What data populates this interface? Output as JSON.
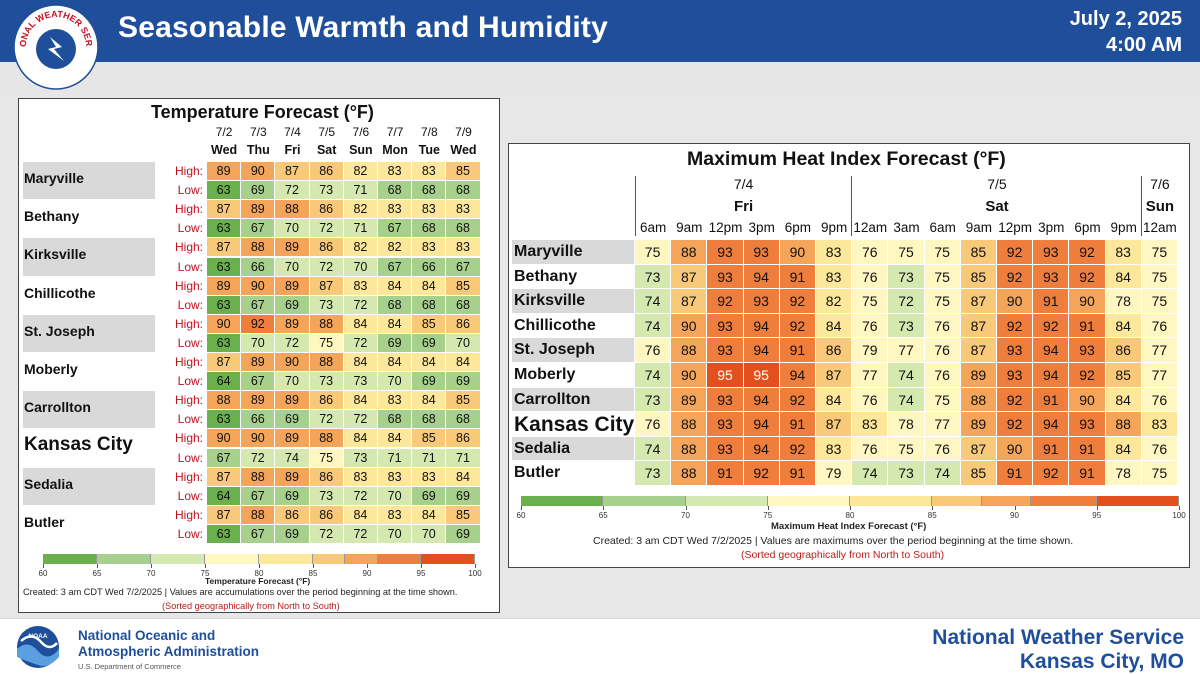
{
  "header": {
    "logo_text": "NATIONAL WEATHER SERVICE",
    "title": "Seasonable Warmth and Humidity",
    "date": "July 2, 2025",
    "time": "4:00 AM"
  },
  "footer": {
    "noaa_line1": "National Oceanic and",
    "noaa_line2": "Atmospheric Administration",
    "noaa_dept": "U.S. Department of Commerce",
    "noaa_logo_text": "NOAA",
    "nws_line1": "National Weather Service",
    "nws_line2": "Kansas City, MO"
  },
  "colors": {
    "header_blue": "#1f4f9a",
    "high_label_red": "#c1121f",
    "scale": [
      "#6ab04c",
      "#a8d08d",
      "#d5e8b0",
      "#fff7c2",
      "#fde79a",
      "#f9c97a",
      "#f5a55a",
      "#ef7d3c",
      "#e3501e"
    ]
  },
  "chart_data": [
    {
      "type": "table",
      "title": "Temperature Forecast (°F)",
      "dates": [
        "7/2",
        "7/3",
        "7/4",
        "7/5",
        "7/6",
        "7/7",
        "7/8",
        "7/9"
      ],
      "days": [
        "Wed",
        "Thu",
        "Fri",
        "Sat",
        "Sun",
        "Mon",
        "Tue",
        "Wed"
      ],
      "row_labels": [
        "High:",
        "Low:"
      ],
      "cities": [
        "Maryville",
        "Bethany",
        "Kirksville",
        "Chillicothe",
        "St. Joseph",
        "Moberly",
        "Carrollton",
        "Kansas City",
        "Sedalia",
        "Butler"
      ],
      "high": [
        [
          89,
          90,
          87,
          86,
          82,
          83,
          83,
          85
        ],
        [
          87,
          89,
          88,
          86,
          82,
          83,
          83,
          83
        ],
        [
          87,
          88,
          89,
          86,
          82,
          82,
          83,
          83
        ],
        [
          89,
          90,
          89,
          87,
          83,
          84,
          84,
          85
        ],
        [
          90,
          92,
          89,
          88,
          84,
          84,
          85,
          86
        ],
        [
          87,
          89,
          90,
          88,
          84,
          84,
          84,
          84
        ],
        [
          88,
          89,
          89,
          86,
          84,
          83,
          84,
          85
        ],
        [
          90,
          90,
          89,
          88,
          84,
          84,
          85,
          86
        ],
        [
          87,
          88,
          89,
          86,
          83,
          83,
          83,
          84
        ],
        [
          87,
          88,
          86,
          86,
          84,
          83,
          84,
          85
        ]
      ],
      "low": [
        [
          63,
          69,
          72,
          73,
          71,
          68,
          68,
          68
        ],
        [
          63,
          67,
          70,
          72,
          71,
          67,
          68,
          68
        ],
        [
          63,
          66,
          70,
          72,
          70,
          67,
          66,
          67
        ],
        [
          63,
          67,
          69,
          73,
          72,
          68,
          68,
          68
        ],
        [
          63,
          70,
          72,
          75,
          72,
          69,
          69,
          70
        ],
        [
          64,
          67,
          70,
          73,
          73,
          70,
          69,
          69
        ],
        [
          63,
          66,
          69,
          72,
          72,
          68,
          68,
          68
        ],
        [
          67,
          72,
          74,
          75,
          73,
          71,
          71,
          71
        ],
        [
          64,
          67,
          69,
          73,
          72,
          70,
          69,
          69
        ],
        [
          63,
          67,
          69,
          72,
          72,
          70,
          70,
          69
        ]
      ],
      "colorbar": {
        "ticks": [
          60,
          65,
          70,
          75,
          80,
          85,
          90,
          95,
          100
        ],
        "label": "Temperature Forecast (°F)"
      },
      "note1": "Created: 3 am CDT Wed 7/2/2025  |  Values are accumulations over the period beginning at the time shown.",
      "note2": "(Sorted geographically from North to South)"
    },
    {
      "type": "table",
      "title": "Maximum Heat Index Forecast (°F)",
      "day_groups": [
        {
          "date": "7/4",
          "day": "Fri",
          "count": 6
        },
        {
          "date": "7/5",
          "day": "Sat",
          "count": 8
        },
        {
          "date": "7/6",
          "day": "Sun",
          "count": 1
        }
      ],
      "hours": [
        "6am",
        "9am",
        "12pm",
        "3pm",
        "6pm",
        "9pm",
        "12am",
        "3am",
        "6am",
        "9am",
        "12pm",
        "3pm",
        "6pm",
        "9pm",
        "12am"
      ],
      "cities": [
        "Maryville",
        "Bethany",
        "Kirksville",
        "Chillicothe",
        "St. Joseph",
        "Moberly",
        "Carrollton",
        "Kansas City",
        "Sedalia",
        "Butler"
      ],
      "values": [
        [
          75,
          88,
          93,
          93,
          90,
          83,
          76,
          75,
          75,
          85,
          92,
          93,
          92,
          83,
          75
        ],
        [
          73,
          87,
          93,
          94,
          91,
          83,
          76,
          73,
          75,
          85,
          92,
          93,
          92,
          84,
          75
        ],
        [
          74,
          87,
          92,
          93,
          92,
          82,
          75,
          72,
          75,
          87,
          90,
          91,
          90,
          78,
          75
        ],
        [
          74,
          90,
          93,
          94,
          92,
          84,
          76,
          73,
          76,
          87,
          92,
          92,
          91,
          84,
          76
        ],
        [
          76,
          88,
          93,
          94,
          91,
          86,
          79,
          77,
          76,
          87,
          93,
          94,
          93,
          86,
          77
        ],
        [
          74,
          90,
          95,
          95,
          94,
          87,
          77,
          74,
          76,
          89,
          93,
          94,
          92,
          85,
          77
        ],
        [
          73,
          89,
          93,
          94,
          92,
          84,
          76,
          74,
          75,
          88,
          92,
          91,
          90,
          84,
          76
        ],
        [
          76,
          88,
          93,
          94,
          91,
          87,
          83,
          78,
          77,
          89,
          92,
          94,
          93,
          88,
          83
        ],
        [
          74,
          88,
          93,
          94,
          92,
          83,
          76,
          75,
          76,
          87,
          90,
          91,
          91,
          84,
          76
        ],
        [
          73,
          88,
          91,
          92,
          91,
          79,
          74,
          73,
          74,
          85,
          91,
          92,
          91,
          78,
          75
        ]
      ],
      "colorbar": {
        "ticks": [
          60,
          65,
          70,
          75,
          80,
          85,
          90,
          95,
          100
        ],
        "label": "Maximum Heat Index Forecast (°F)"
      },
      "note1": "Created: 3 am CDT Wed 7/2/2025  |  Values are maximums over the period beginning at the time shown.",
      "note2": "(Sorted geographically from North to South)"
    }
  ]
}
